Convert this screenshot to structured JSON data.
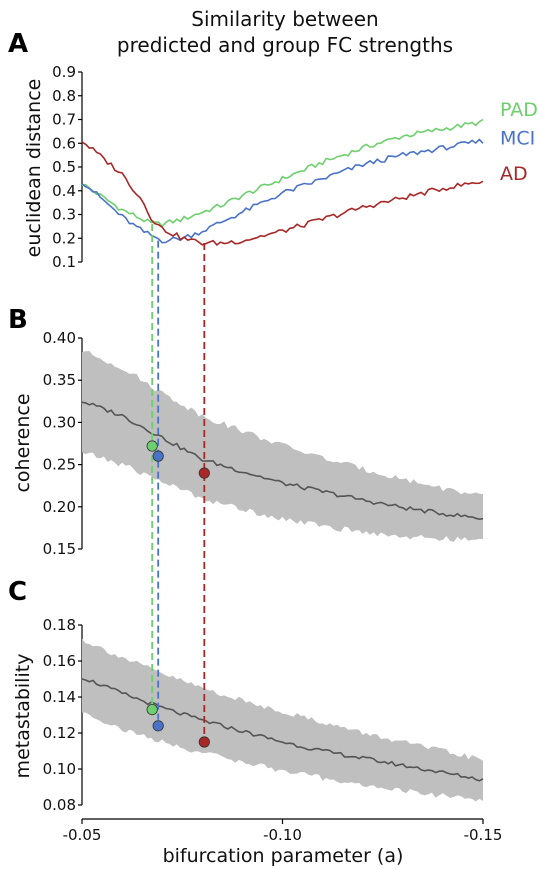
{
  "figure": {
    "title_line1": "Similarity between",
    "title_line2": "predicted and group FC strengths",
    "x_axis_label": "bifurcation parameter (a)",
    "x_tick_labels": [
      "-0.05",
      "-0.10",
      "-0.15"
    ],
    "colors": {
      "PAD": "#6dcf6d",
      "MCI": "#4a72c8",
      "AD": "#a82828",
      "mean_line": "#555555",
      "band": "#bfbfbf"
    }
  },
  "chart_data": [
    {
      "panel": "A",
      "type": "line",
      "title": "",
      "ylabel": "euclidean distance",
      "xlim": [
        -0.05,
        -0.15
      ],
      "ylim": [
        0.1,
        0.9
      ],
      "y_ticks": [
        "0.1",
        "0.2",
        "0.3",
        "0.4",
        "0.5",
        "0.6",
        "0.7",
        "0.8",
        "0.9"
      ],
      "x": [
        -0.05,
        -0.06,
        -0.065,
        -0.0675,
        -0.07,
        -0.075,
        -0.08,
        -0.085,
        -0.09,
        -0.1,
        -0.11,
        -0.12,
        -0.13,
        -0.14,
        -0.15
      ],
      "series": [
        {
          "name": "PAD",
          "values": [
            0.43,
            0.32,
            0.28,
            0.26,
            0.26,
            0.28,
            0.31,
            0.34,
            0.38,
            0.45,
            0.52,
            0.58,
            0.63,
            0.66,
            0.69
          ]
        },
        {
          "name": "MCI",
          "values": [
            0.44,
            0.29,
            0.23,
            0.21,
            0.19,
            0.2,
            0.23,
            0.27,
            0.31,
            0.39,
            0.45,
            0.51,
            0.55,
            0.58,
            0.61
          ]
        },
        {
          "name": "AD",
          "values": [
            0.61,
            0.47,
            0.36,
            0.28,
            0.24,
            0.2,
            0.18,
            0.18,
            0.19,
            0.23,
            0.28,
            0.33,
            0.37,
            0.41,
            0.44
          ]
        }
      ],
      "minima": [
        {
          "name": "PAD",
          "x": -0.0675,
          "y": 0.26
        },
        {
          "name": "MCI",
          "x": -0.069,
          "y": 0.19
        },
        {
          "name": "AD",
          "x": -0.0805,
          "y": 0.18
        }
      ]
    },
    {
      "panel": "B",
      "type": "line",
      "title": "",
      "ylabel": "coherence",
      "xlim": [
        -0.05,
        -0.15
      ],
      "ylim": [
        0.15,
        0.4
      ],
      "y_ticks": [
        "0.15",
        "0.20",
        "0.25",
        "0.30",
        "0.35",
        "0.40"
      ],
      "x": [
        -0.05,
        -0.06,
        -0.07,
        -0.08,
        -0.09,
        -0.1,
        -0.11,
        -0.12,
        -0.13,
        -0.14,
        -0.15
      ],
      "mean": [
        0.325,
        0.308,
        0.282,
        0.256,
        0.242,
        0.228,
        0.218,
        0.208,
        0.199,
        0.192,
        0.186
      ],
      "band_upper": [
        0.385,
        0.365,
        0.335,
        0.308,
        0.29,
        0.273,
        0.258,
        0.245,
        0.233,
        0.222,
        0.212
      ],
      "band_lower": [
        0.265,
        0.25,
        0.23,
        0.21,
        0.197,
        0.186,
        0.177,
        0.17,
        0.165,
        0.162,
        0.16
      ],
      "points": [
        {
          "name": "PAD",
          "x": -0.0675,
          "y": 0.272
        },
        {
          "name": "MCI",
          "x": -0.069,
          "y": 0.26
        },
        {
          "name": "AD",
          "x": -0.0805,
          "y": 0.24
        }
      ]
    },
    {
      "panel": "C",
      "type": "line",
      "title": "",
      "ylabel": "metastability",
      "xlim": [
        -0.05,
        -0.15
      ],
      "ylim": [
        0.08,
        0.18
      ],
      "y_ticks": [
        "0.08",
        "0.10",
        "0.12",
        "0.14",
        "0.16",
        "0.18"
      ],
      "x": [
        -0.05,
        -0.06,
        -0.07,
        -0.08,
        -0.09,
        -0.1,
        -0.11,
        -0.12,
        -0.13,
        -0.14,
        -0.15
      ],
      "mean": [
        0.151,
        0.142,
        0.134,
        0.127,
        0.121,
        0.115,
        0.11,
        0.106,
        0.102,
        0.098,
        0.094
      ],
      "band_upper": [
        0.172,
        0.162,
        0.153,
        0.145,
        0.138,
        0.132,
        0.126,
        0.12,
        0.115,
        0.11,
        0.105
      ],
      "band_lower": [
        0.132,
        0.122,
        0.115,
        0.109,
        0.104,
        0.099,
        0.095,
        0.091,
        0.088,
        0.085,
        0.083
      ],
      "points": [
        {
          "name": "PAD",
          "x": -0.0675,
          "y": 0.133
        },
        {
          "name": "MCI",
          "x": -0.069,
          "y": 0.124
        },
        {
          "name": "AD",
          "x": -0.0805,
          "y": 0.115
        }
      ]
    }
  ]
}
